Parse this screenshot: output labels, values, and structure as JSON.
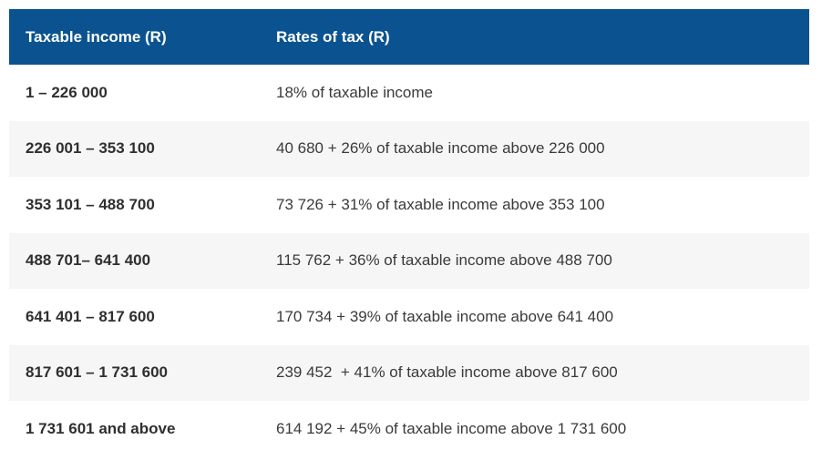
{
  "table": {
    "headers": [
      "Taxable income (R)",
      "Rates of tax (R)"
    ],
    "rows": [
      {
        "income": "1 – 226 000",
        "rate": "18% of taxable income"
      },
      {
        "income": "226 001 – 353 100",
        "rate": "40 680 + 26% of taxable income above 226 000"
      },
      {
        "income": "353 101 – 488 700",
        "rate": "73 726 + 31% of taxable income above 353 100"
      },
      {
        "income": "488 701– 641 400",
        "rate": "115 762 + 36% of taxable income above 488 700"
      },
      {
        "income": "641 401 – 817 600",
        "rate": "170 734 + 39% of taxable income above 641 400"
      },
      {
        "income": "817 601 – 1 731 600",
        "rate": "239 452  + 41% of taxable income above 817 600"
      },
      {
        "income": "1 731 601 and above",
        "rate": "614 192 + 45% of taxable income above 1 731 600"
      }
    ]
  },
  "colors": {
    "header_background": "#0b5390",
    "header_text": "#ffffff",
    "alternate_row": "#f6f6f6"
  }
}
